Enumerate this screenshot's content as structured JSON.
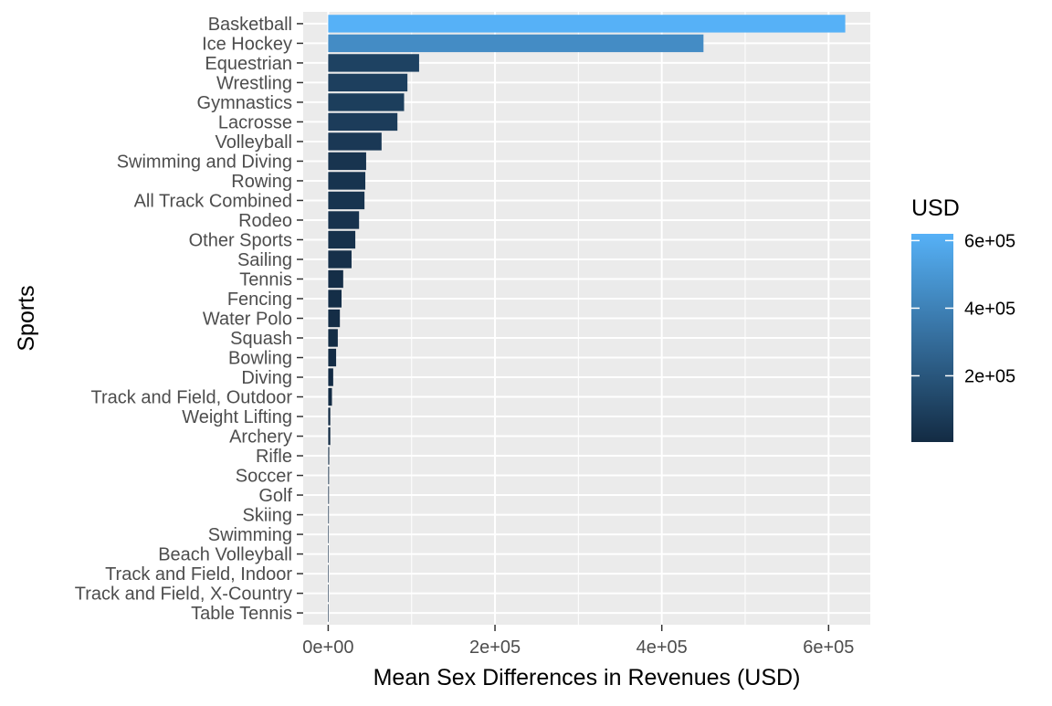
{
  "chart_data": {
    "type": "bar",
    "orientation": "horizontal",
    "categories": [
      "Basketball",
      "Ice Hockey",
      "Equestrian",
      "Wrestling",
      "Gymnastics",
      "Lacrosse",
      "Volleyball",
      "Swimming and Diving",
      "Rowing",
      "All Track Combined",
      "Rodeo",
      "Other Sports",
      "Sailing",
      "Tennis",
      "Fencing",
      "Water Polo",
      "Squash",
      "Bowling",
      "Diving",
      "Track and Field, Outdoor",
      "Weight Lifting",
      "Archery",
      "Rifle",
      "Soccer",
      "Golf",
      "Skiing",
      "Swimming",
      "Beach Volleyball",
      "Track and Field, Indoor",
      "Track and Field, X-Country",
      "Table Tennis"
    ],
    "values": [
      620000,
      450000,
      109000,
      95000,
      91000,
      83000,
      64000,
      45500,
      44500,
      43500,
      37000,
      32500,
      28000,
      18000,
      16000,
      14000,
      11500,
      9500,
      6000,
      4500,
      2500,
      2500,
      1200,
      1000,
      900,
      800,
      700,
      0,
      0,
      0,
      0
    ],
    "xlabel": "Mean Sex Differences in Revenues (USD)",
    "ylabel": "Sports",
    "xlim": [
      -30000,
      650000
    ],
    "x_ticks": [
      0,
      200000,
      400000,
      600000
    ],
    "x_tick_labels": [
      "0e+00",
      "2e+05",
      "4e+05",
      "6e+05"
    ],
    "grid": true,
    "legend": {
      "title": "USD",
      "position": "right",
      "type": "colorbar",
      "range": [
        4000,
        620000
      ],
      "ticks": [
        200000,
        400000,
        600000
      ],
      "tick_labels": [
        "2e+05",
        "4e+05",
        "6e+05"
      ],
      "color_low": "#132B43",
      "color_high": "#56B1F7"
    },
    "colors": {
      "panel_background": "#EBEBEB",
      "grid_line": "#FFFFFF"
    }
  }
}
